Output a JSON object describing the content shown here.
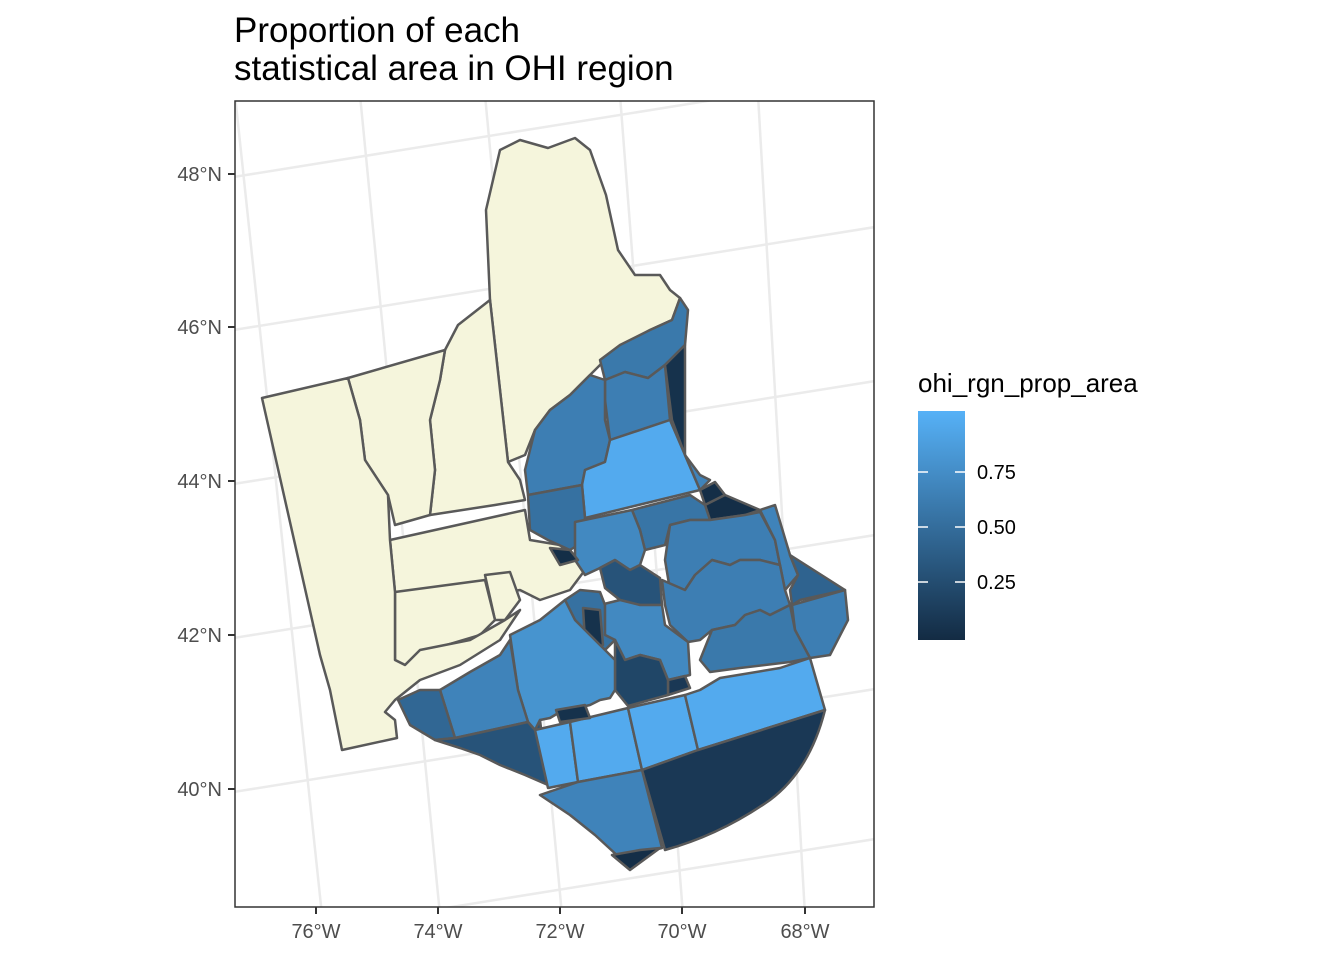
{
  "title_lines": [
    "Proportion of each",
    "statistical area in OHI region"
  ],
  "axis": {
    "y_ticks": [
      "48°N",
      "46°N",
      "44°N",
      "42°N",
      "40°N"
    ],
    "x_ticks": [
      "76°W",
      "74°W",
      "72°W",
      "70°W",
      "68°W"
    ]
  },
  "legend": {
    "title": "ohi_rgn_prop_area",
    "labels": [
      "0.75",
      "0.50",
      "0.25"
    ],
    "colors": {
      "low": "#132b43",
      "high": "#56b1f7"
    }
  },
  "colors": {
    "land": "#f5f5dc",
    "border": "#595959",
    "grid": "#ebebeb",
    "panel_border": "#333333"
  },
  "chart_data": {
    "type": "map",
    "fill_variable": "ohi_rgn_prop_area",
    "scale_range": [
      0,
      1
    ],
    "lat_ticks": [
      48,
      46,
      44,
      42,
      40
    ],
    "lon_ticks": [
      -76,
      -74,
      -72,
      -70,
      -68
    ],
    "zones": [
      {
        "value": 0.58
      },
      {
        "value": 0.62
      },
      {
        "value": 0.05
      },
      {
        "value": 0.62
      },
      {
        "value": 0.95
      },
      {
        "value": 0.66
      },
      {
        "value": 0.02
      },
      {
        "value": 0.02
      },
      {
        "value": 0.52
      },
      {
        "value": 0.55
      },
      {
        "value": 0.7
      },
      {
        "value": 0.02
      },
      {
        "value": 0.62
      },
      {
        "value": 0.66
      },
      {
        "value": 0.42
      },
      {
        "value": 0.3
      },
      {
        "value": 0.62
      },
      {
        "value": 0.62
      },
      {
        "value": 0.58
      },
      {
        "value": 0.7
      },
      {
        "value": 0.52
      },
      {
        "value": 0.05
      },
      {
        "value": 0.1
      },
      {
        "value": 0.2
      },
      {
        "value": 0.78
      },
      {
        "value": 0.66
      },
      {
        "value": 0.45
      },
      {
        "value": 0.3
      },
      {
        "value": 0.95
      },
      {
        "value": 0.95
      },
      {
        "value": 0.95
      },
      {
        "value": 0.95
      },
      {
        "value": 0.95
      },
      {
        "value": 0.1
      },
      {
        "value": 0.66
      },
      {
        "value": 0.02
      },
      {
        "value": 0.05
      }
    ]
  }
}
